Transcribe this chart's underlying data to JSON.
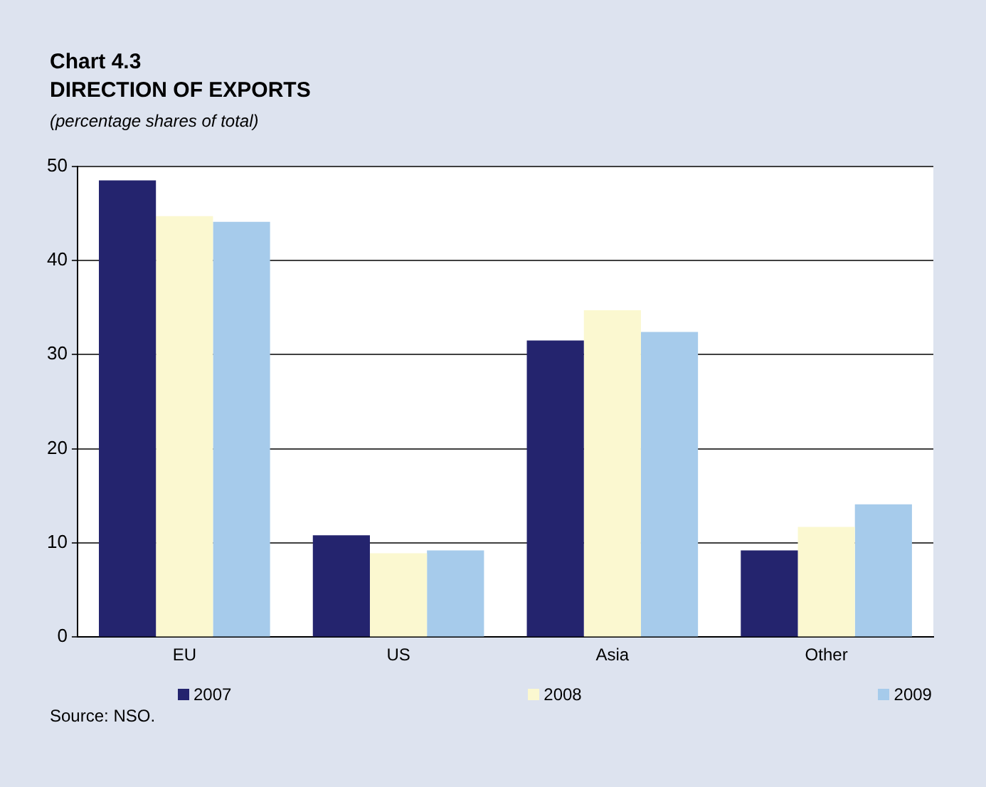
{
  "chart_data": {
    "type": "bar",
    "title": "Chart 4.3",
    "subtitle": "DIRECTION OF EXPORTS",
    "annotations": [
      "(percentage shares of total)",
      "Source: NSO."
    ],
    "categories": [
      "EU",
      "US",
      "Asia",
      "Other"
    ],
    "series": [
      {
        "name": "2007",
        "color": "#24246e",
        "values": [
          48.5,
          10.8,
          31.5,
          9.2
        ]
      },
      {
        "name": "2008",
        "color": "#fbf8d0",
        "values": [
          44.7,
          8.9,
          34.7,
          11.7
        ]
      },
      {
        "name": "2009",
        "color": "#a6cbeb",
        "values": [
          44.1,
          9.2,
          32.4,
          14.1
        ]
      }
    ],
    "ylim": [
      0,
      50
    ],
    "yticks": [
      0,
      10,
      20,
      30,
      40,
      50
    ],
    "grid": "y",
    "legend": "bottom"
  }
}
